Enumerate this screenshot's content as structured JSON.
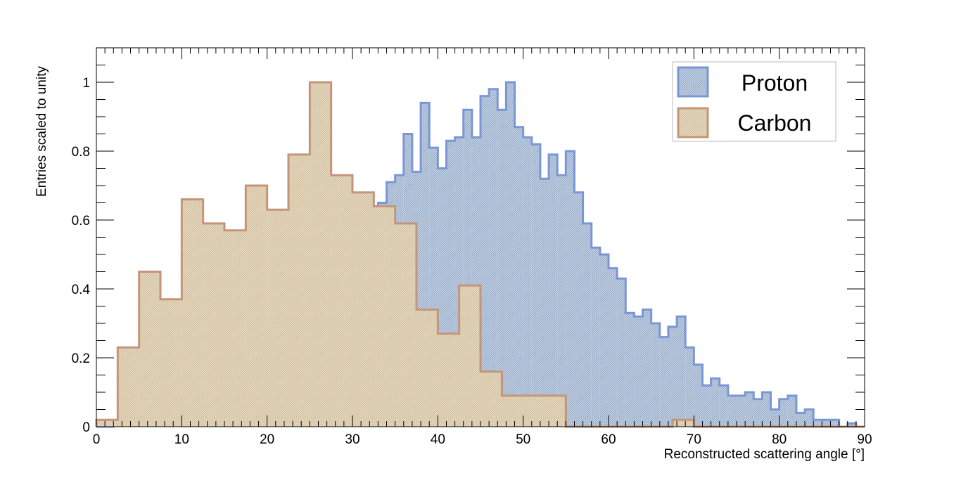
{
  "chart_data": {
    "type": "histogram",
    "xlabel": "Reconstructed scattering angle [°]",
    "ylabel": "Entries scaled to unity",
    "xlim": [
      0,
      90
    ],
    "ylim": [
      0,
      1.1
    ],
    "x_ticks": [
      "0",
      "10",
      "20",
      "30",
      "40",
      "50",
      "60",
      "70",
      "80",
      "90"
    ],
    "y_ticks": [
      "0",
      "0.2",
      "0.4",
      "0.6",
      "0.8",
      "1"
    ],
    "grid": false,
    "legend_position": "top-right",
    "series": [
      {
        "name": "Proton",
        "color": "#7b96d6",
        "fill": "#9bb0cf",
        "bin_width": 1,
        "bin_start": 0,
        "values": [
          0.0,
          0.0,
          0.01,
          0.06,
          0.02,
          0.03,
          0.04,
          0.06,
          0.1,
          0.03,
          0.09,
          0.14,
          0.1,
          0.18,
          0.12,
          0.2,
          0.16,
          0.19,
          0.24,
          0.26,
          0.28,
          0.34,
          0.34,
          0.42,
          0.36,
          0.44,
          0.46,
          0.48,
          0.49,
          0.61,
          0.59,
          0.67,
          0.63,
          0.65,
          0.71,
          0.73,
          0.85,
          0.74,
          0.94,
          0.81,
          0.75,
          0.83,
          0.84,
          0.92,
          0.84,
          0.96,
          0.98,
          0.92,
          1.0,
          0.87,
          0.84,
          0.82,
          0.72,
          0.79,
          0.73,
          0.8,
          0.68,
          0.59,
          0.52,
          0.5,
          0.46,
          0.43,
          0.33,
          0.32,
          0.34,
          0.3,
          0.26,
          0.29,
          0.32,
          0.23,
          0.18,
          0.12,
          0.14,
          0.12,
          0.09,
          0.09,
          0.1,
          0.08,
          0.1,
          0.05,
          0.08,
          0.09,
          0.04,
          0.05,
          0.02,
          0.02,
          0.02,
          0.0,
          0.01,
          0.0
        ]
      },
      {
        "name": "Carbon",
        "color": "#c4957a",
        "fill": "#d9c9a6",
        "bin_width": 2.5,
        "bin_start": 0,
        "values": [
          0.02,
          0.23,
          0.45,
          0.37,
          0.66,
          0.59,
          0.57,
          0.7,
          0.63,
          0.79,
          1.0,
          0.73,
          0.68,
          0.64,
          0.59,
          0.34,
          0.27,
          0.41,
          0.16,
          0.09,
          0.09,
          0.09,
          0.0,
          0.0,
          0.0,
          0.0,
          0.0,
          0.02,
          0.0,
          0.0,
          0.0,
          0.0,
          0.0,
          0.0,
          0.0,
          0.0
        ]
      }
    ]
  }
}
